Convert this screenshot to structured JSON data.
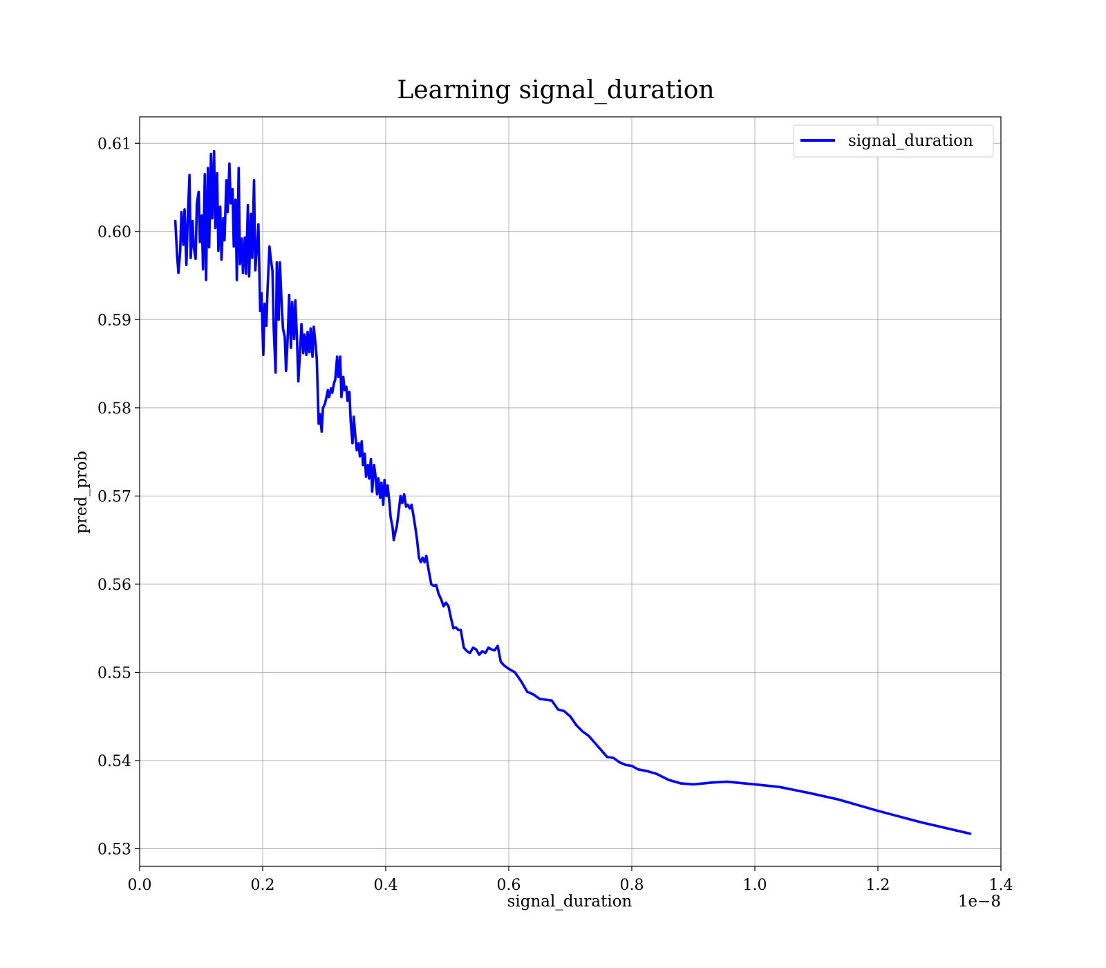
{
  "chart_data": {
    "type": "line",
    "title": "Learning signal_duration",
    "xlabel": "signal_duration",
    "ylabel": "pred_prob",
    "x_offset_text": "1e−8",
    "xlim": [
      0.0,
      1.4
    ],
    "ylim": [
      0.528,
      0.613
    ],
    "x_ticks": [
      0.0,
      0.2,
      0.4,
      0.6,
      0.8,
      1.0,
      1.2,
      1.4
    ],
    "x_tick_labels": [
      "0.0",
      "0.2",
      "0.4",
      "0.6",
      "0.8",
      "1.0",
      "1.2",
      "1.4"
    ],
    "y_ticks": [
      0.53,
      0.54,
      0.55,
      0.56,
      0.57,
      0.58,
      0.59,
      0.6,
      0.61
    ],
    "y_tick_labels": [
      "0.53",
      "0.54",
      "0.55",
      "0.56",
      "0.57",
      "0.58",
      "0.59",
      "0.60",
      "0.61"
    ],
    "grid": true,
    "legend_position": "top-right",
    "series": [
      {
        "name": "signal_duration",
        "color": "#0000ff",
        "x": [
          0.058,
          0.061,
          0.063,
          0.066,
          0.068,
          0.071,
          0.073,
          0.076,
          0.078,
          0.081,
          0.083,
          0.086,
          0.088,
          0.091,
          0.093,
          0.096,
          0.098,
          0.101,
          0.103,
          0.106,
          0.108,
          0.111,
          0.113,
          0.116,
          0.118,
          0.121,
          0.123,
          0.126,
          0.128,
          0.131,
          0.133,
          0.136,
          0.138,
          0.141,
          0.143,
          0.146,
          0.148,
          0.151,
          0.153,
          0.156,
          0.158,
          0.161,
          0.163,
          0.166,
          0.168,
          0.171,
          0.173,
          0.176,
          0.178,
          0.181,
          0.183,
          0.186,
          0.188,
          0.191,
          0.193,
          0.196,
          0.198,
          0.201,
          0.203,
          0.206,
          0.208,
          0.211,
          0.213,
          0.216,
          0.218,
          0.221,
          0.223,
          0.226,
          0.228,
          0.231,
          0.233,
          0.236,
          0.238,
          0.241,
          0.243,
          0.246,
          0.248,
          0.251,
          0.253,
          0.256,
          0.258,
          0.261,
          0.263,
          0.266,
          0.268,
          0.271,
          0.273,
          0.276,
          0.278,
          0.281,
          0.283,
          0.286,
          0.288,
          0.291,
          0.293,
          0.296,
          0.298,
          0.301,
          0.303,
          0.306,
          0.308,
          0.311,
          0.313,
          0.316,
          0.318,
          0.321,
          0.323,
          0.326,
          0.328,
          0.331,
          0.333,
          0.336,
          0.338,
          0.341,
          0.343,
          0.346,
          0.348,
          0.351,
          0.353,
          0.356,
          0.358,
          0.361,
          0.363,
          0.366,
          0.368,
          0.371,
          0.373,
          0.376,
          0.378,
          0.381,
          0.383,
          0.386,
          0.388,
          0.391,
          0.393,
          0.396,
          0.398,
          0.401,
          0.403,
          0.406,
          0.408,
          0.411,
          0.413,
          0.416,
          0.418,
          0.421,
          0.424,
          0.427,
          0.43,
          0.433,
          0.436,
          0.439,
          0.442,
          0.445,
          0.448,
          0.451,
          0.454,
          0.457,
          0.46,
          0.463,
          0.466,
          0.47,
          0.474,
          0.478,
          0.482,
          0.486,
          0.49,
          0.494,
          0.498,
          0.502,
          0.506,
          0.51,
          0.514,
          0.518,
          0.522,
          0.527,
          0.532,
          0.537,
          0.542,
          0.547,
          0.552,
          0.557,
          0.562,
          0.567,
          0.572,
          0.577,
          0.582,
          0.587,
          0.592,
          0.6,
          0.61,
          0.62,
          0.63,
          0.64,
          0.65,
          0.66,
          0.67,
          0.68,
          0.69,
          0.7,
          0.71,
          0.72,
          0.73,
          0.74,
          0.75,
          0.76,
          0.77,
          0.78,
          0.79,
          0.8,
          0.81,
          0.825,
          0.84,
          0.86,
          0.88,
          0.9,
          0.93,
          0.955,
          1.0,
          1.04,
          1.09,
          1.135,
          1.2,
          1.27,
          1.35
        ],
        "y": [
          0.6012,
          0.5972,
          0.5953,
          0.5978,
          0.6022,
          0.5985,
          0.6025,
          0.5962,
          0.6009,
          0.6064,
          0.597,
          0.6012,
          0.5982,
          0.5969,
          0.6032,
          0.6045,
          0.5988,
          0.6018,
          0.5957,
          0.6065,
          0.5945,
          0.6072,
          0.5982,
          0.6088,
          0.6015,
          0.6091,
          0.6004,
          0.6066,
          0.5978,
          0.6028,
          0.5968,
          0.6015,
          0.599,
          0.6058,
          0.6022,
          0.6077,
          0.6032,
          0.6048,
          0.5983,
          0.6036,
          0.5945,
          0.6072,
          0.5963,
          0.5992,
          0.5953,
          0.5993,
          0.5952,
          0.603,
          0.5949,
          0.602,
          0.597,
          0.6058,
          0.5956,
          0.5985,
          0.6008,
          0.591,
          0.593,
          0.586,
          0.5918,
          0.5893,
          0.5935,
          0.5983,
          0.597,
          0.5955,
          0.589,
          0.584,
          0.5965,
          0.59,
          0.5965,
          0.5915,
          0.589,
          0.588,
          0.5842,
          0.5885,
          0.5928,
          0.5868,
          0.592,
          0.5878,
          0.5922,
          0.5875,
          0.583,
          0.5867,
          0.5895,
          0.5862,
          0.5883,
          0.586,
          0.5886,
          0.5863,
          0.589,
          0.5858,
          0.5892,
          0.5872,
          0.5855,
          0.5782,
          0.5793,
          0.5773,
          0.58,
          0.5804,
          0.581,
          0.582,
          0.5812,
          0.5822,
          0.5817,
          0.5828,
          0.5832,
          0.5858,
          0.5835,
          0.5858,
          0.5812,
          0.5835,
          0.582,
          0.5824,
          0.5808,
          0.5818,
          0.5785,
          0.576,
          0.579,
          0.5765,
          0.5752,
          0.576,
          0.5745,
          0.5762,
          0.5735,
          0.5748,
          0.5722,
          0.5735,
          0.572,
          0.5742,
          0.5705,
          0.5735,
          0.5725,
          0.5702,
          0.572,
          0.5698,
          0.5715,
          0.569,
          0.5718,
          0.57,
          0.5712,
          0.5693,
          0.5676,
          0.5665,
          0.565,
          0.566,
          0.5665,
          0.5682,
          0.57,
          0.5692,
          0.5702,
          0.5688,
          0.569,
          0.5686,
          0.569,
          0.5678,
          0.5665,
          0.565,
          0.563,
          0.5625,
          0.563,
          0.5625,
          0.5632,
          0.5615,
          0.56,
          0.5598,
          0.5599,
          0.5589,
          0.5583,
          0.5575,
          0.5579,
          0.5575,
          0.5562,
          0.555,
          0.5551,
          0.5548,
          0.5548,
          0.5528,
          0.5524,
          0.5522,
          0.5528,
          0.5526,
          0.552,
          0.5524,
          0.5522,
          0.5528,
          0.5526,
          0.5525,
          0.553,
          0.5512,
          0.5508,
          0.5504,
          0.55,
          0.549,
          0.5478,
          0.5475,
          0.547,
          0.5469,
          0.5468,
          0.5458,
          0.5456,
          0.545,
          0.544,
          0.5433,
          0.5428,
          0.542,
          0.5412,
          0.5404,
          0.5403,
          0.5398,
          0.5395,
          0.5394,
          0.539,
          0.5388,
          0.5385,
          0.5378,
          0.5374,
          0.5373,
          0.5375,
          0.5376,
          0.5373,
          0.537,
          0.5363,
          0.5356,
          0.5343,
          0.533,
          0.5317
        ]
      }
    ]
  }
}
